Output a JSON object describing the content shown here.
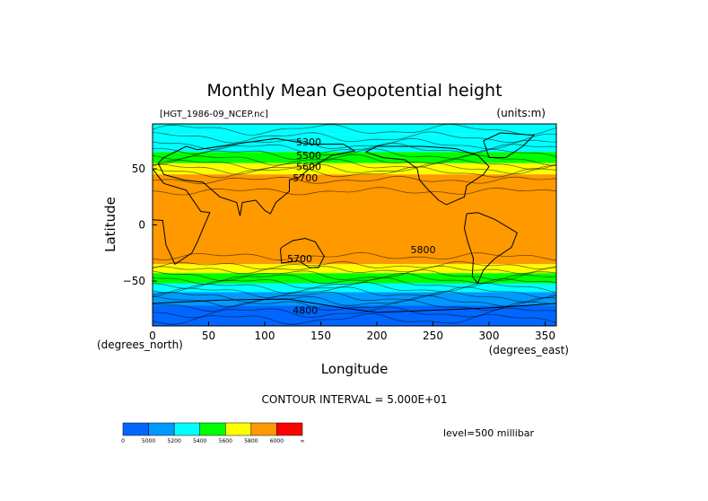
{
  "chart_data": {
    "type": "heatmap",
    "title": "Monthly Mean Geopotential height",
    "file_label": "[HGT_1986-09_NCEP.nc]",
    "units_label": "(units:m)",
    "xlabel": "Longitude",
    "ylabel": "Latitude",
    "x_unit_label": "(degrees_east)",
    "y_unit_label": "(degrees_north)",
    "xlim": [
      0,
      360
    ],
    "ylim": [
      -90,
      90
    ],
    "x_ticks": [
      0,
      50,
      100,
      150,
      200,
      250,
      300,
      350
    ],
    "y_ticks": [
      50,
      0,
      -50
    ],
    "x_tick_labels": [
      "0",
      "50",
      "100",
      "150",
      "200",
      "250",
      "300",
      "350"
    ],
    "y_tick_labels": [
      "50",
      "0",
      "−50"
    ],
    "contour_interval_text": "CONTOUR INTERVAL = 5.000E+01",
    "level_text": "level=500 millibar",
    "contour_labels": [
      {
        "text": "5300",
        "lon": 128,
        "lat": 74
      },
      {
        "text": "5500",
        "lon": 128,
        "lat": 62
      },
      {
        "text": "5600",
        "lon": 128,
        "lat": 52
      },
      {
        "text": "5700",
        "lon": 125,
        "lat": 42
      },
      {
        "text": "5800",
        "lon": 230,
        "lat": -22
      },
      {
        "text": "5700",
        "lon": 120,
        "lat": -30
      },
      {
        "text": "4800",
        "lon": 125,
        "lat": -76
      }
    ],
    "latitude_bands": [
      {
        "lat_top": 90,
        "lat_bottom": 81,
        "color": "#00ffff"
      },
      {
        "lat_top": 81,
        "lat_bottom": 65,
        "color": "#00ffff"
      },
      {
        "lat_top": 65,
        "lat_bottom": 55,
        "color": "#00ff00"
      },
      {
        "lat_top": 55,
        "lat_bottom": 45,
        "color": "#ffff00"
      },
      {
        "lat_top": 45,
        "lat_bottom": -22,
        "color": "#ff9900"
      },
      {
        "lat_top": -22,
        "lat_bottom": -35,
        "color": "#ff9900"
      },
      {
        "lat_top": -35,
        "lat_bottom": -43,
        "color": "#ffff00"
      },
      {
        "lat_top": -43,
        "lat_bottom": -52,
        "color": "#00ff00"
      },
      {
        "lat_top": -52,
        "lat_bottom": -60,
        "color": "#00ffff"
      },
      {
        "lat_top": -60,
        "lat_bottom": -72,
        "color": "#0099ff"
      },
      {
        "lat_top": -72,
        "lat_bottom": -90,
        "color": "#0066ff"
      }
    ],
    "colorbar": {
      "colors": [
        "#0066ff",
        "#0099ff",
        "#00ffff",
        "#00ff00",
        "#ffff00",
        "#ff9900",
        "#ff0000"
      ],
      "labels": [
        "0",
        "5000",
        "5200",
        "5400",
        "5600",
        "5800",
        "6000",
        "∞"
      ]
    }
  }
}
